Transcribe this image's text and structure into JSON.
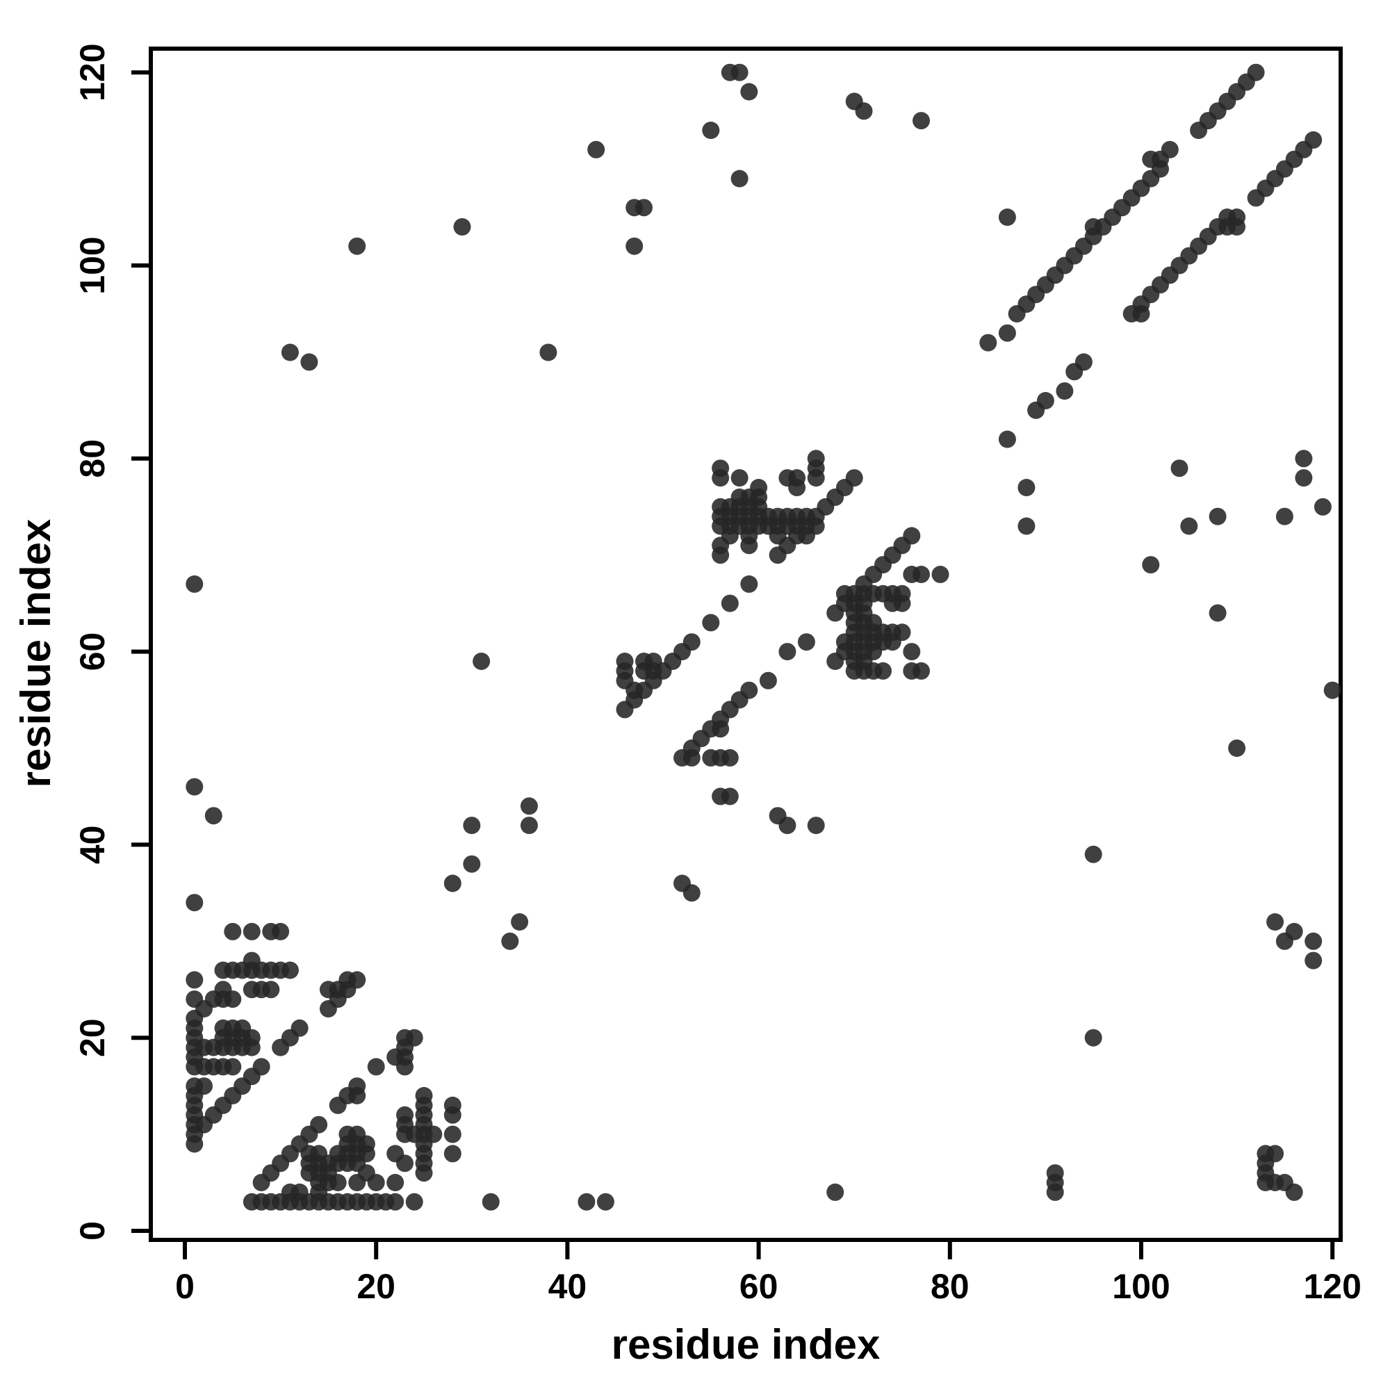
{
  "figure": {
    "background": "#ffffff",
    "axis_color": "#000000",
    "dot_color": "#262626"
  },
  "chart_data": {
    "type": "scatter",
    "title": "",
    "xlabel": "residue index",
    "ylabel": "residue index",
    "xlim": [
      -3.5,
      121
    ],
    "ylim": [
      -1,
      122.5
    ],
    "xticks": [
      0,
      20,
      40,
      60,
      80,
      100,
      120
    ],
    "yticks": [
      0,
      20,
      40,
      60,
      80,
      100,
      120
    ],
    "grid": false,
    "legend": null,
    "marker": {
      "shape": "circle",
      "radius_px": 12.5,
      "opacity": 0.88
    },
    "points": [
      [
        1,
        9
      ],
      [
        1,
        10
      ],
      [
        1,
        11
      ],
      [
        1,
        12
      ],
      [
        1,
        13
      ],
      [
        1,
        14
      ],
      [
        1,
        15
      ],
      [
        1,
        17
      ],
      [
        1,
        18
      ],
      [
        1,
        19
      ],
      [
        1,
        20
      ],
      [
        1,
        21
      ],
      [
        1,
        22
      ],
      [
        1,
        24
      ],
      [
        1,
        26
      ],
      [
        1,
        34
      ],
      [
        2,
        11
      ],
      [
        2,
        15
      ],
      [
        2,
        17
      ],
      [
        2,
        19
      ],
      [
        2,
        23
      ],
      [
        3,
        12
      ],
      [
        4,
        13
      ],
      [
        5,
        14
      ],
      [
        6,
        15
      ],
      [
        7,
        16
      ],
      [
        8,
        17
      ],
      [
        3,
        17
      ],
      [
        4,
        17
      ],
      [
        5,
        17
      ],
      [
        3,
        19
      ],
      [
        4,
        19
      ],
      [
        5,
        19
      ],
      [
        6,
        19
      ],
      [
        7,
        19
      ],
      [
        4,
        20
      ],
      [
        5,
        20
      ],
      [
        6,
        20
      ],
      [
        7,
        20
      ],
      [
        4,
        21
      ],
      [
        5,
        21
      ],
      [
        6,
        21
      ],
      [
        3,
        24
      ],
      [
        4,
        24
      ],
      [
        5,
        24
      ],
      [
        4,
        25
      ],
      [
        7,
        25
      ],
      [
        8,
        25
      ],
      [
        9,
        25
      ],
      [
        7,
        28
      ],
      [
        4,
        27
      ],
      [
        5,
        27
      ],
      [
        6,
        27
      ],
      [
        7,
        27
      ],
      [
        8,
        27
      ],
      [
        9,
        27
      ],
      [
        10,
        27
      ],
      [
        11,
        27
      ],
      [
        5,
        31
      ],
      [
        7,
        31
      ],
      [
        9,
        31
      ],
      [
        10,
        31
      ],
      [
        15,
        23
      ],
      [
        16,
        24
      ],
      [
        15,
        25
      ],
      [
        16,
        25
      ],
      [
        17,
        25
      ],
      [
        17,
        26
      ],
      [
        18,
        26
      ],
      [
        10,
        19
      ],
      [
        11,
        20
      ],
      [
        12,
        21
      ],
      [
        8,
        5
      ],
      [
        9,
        6
      ],
      [
        10,
        7
      ],
      [
        11,
        8
      ],
      [
        12,
        9
      ],
      [
        13,
        10
      ],
      [
        14,
        11
      ],
      [
        7,
        3
      ],
      [
        8,
        3
      ],
      [
        9,
        3
      ],
      [
        10,
        3
      ],
      [
        11,
        3
      ],
      [
        12,
        3
      ],
      [
        13,
        3
      ],
      [
        15,
        3
      ],
      [
        16,
        3
      ],
      [
        17,
        3
      ],
      [
        18,
        3
      ],
      [
        19,
        3
      ],
      [
        20,
        3
      ],
      [
        21,
        3
      ],
      [
        22,
        3
      ],
      [
        24,
        3
      ],
      [
        32,
        3
      ],
      [
        42,
        3
      ],
      [
        44,
        3
      ],
      [
        11,
        4
      ],
      [
        12,
        4
      ],
      [
        14,
        5
      ],
      [
        15,
        5
      ],
      [
        16,
        5
      ],
      [
        18,
        5
      ],
      [
        20,
        5
      ],
      [
        22,
        5
      ],
      [
        13,
        6
      ],
      [
        13,
        7
      ],
      [
        13,
        8
      ],
      [
        14,
        3
      ],
      [
        14,
        4
      ],
      [
        14,
        6
      ],
      [
        14,
        7
      ],
      [
        14,
        8
      ],
      [
        15,
        6
      ],
      [
        15,
        7
      ],
      [
        16,
        7
      ],
      [
        16,
        8
      ],
      [
        17,
        7
      ],
      [
        17,
        8
      ],
      [
        17,
        9
      ],
      [
        17,
        10
      ],
      [
        18,
        7
      ],
      [
        18,
        8
      ],
      [
        18,
        9
      ],
      [
        18,
        10
      ],
      [
        19,
        6
      ],
      [
        19,
        8
      ],
      [
        19,
        9
      ],
      [
        16,
        13
      ],
      [
        17,
        14
      ],
      [
        18,
        14
      ],
      [
        18,
        15
      ],
      [
        22,
        8
      ],
      [
        23,
        7
      ],
      [
        20,
        17
      ],
      [
        22,
        18
      ],
      [
        23,
        17
      ],
      [
        23,
        18
      ],
      [
        23,
        19
      ],
      [
        23,
        20
      ],
      [
        24,
        20
      ],
      [
        25,
        6
      ],
      [
        25,
        7
      ],
      [
        25,
        8
      ],
      [
        25,
        9
      ],
      [
        25,
        10
      ],
      [
        25,
        11
      ],
      [
        25,
        12
      ],
      [
        25,
        13
      ],
      [
        25,
        14
      ],
      [
        23,
        10
      ],
      [
        24,
        10
      ],
      [
        26,
        10
      ],
      [
        23,
        11
      ],
      [
        23,
        12
      ],
      [
        28,
        8
      ],
      [
        28,
        10
      ],
      [
        28,
        12
      ],
      [
        28,
        13
      ],
      [
        28,
        36
      ],
      [
        30,
        38
      ],
      [
        34,
        30
      ],
      [
        35,
        32
      ],
      [
        30,
        42
      ],
      [
        36,
        42
      ],
      [
        36,
        44
      ],
      [
        1,
        46
      ],
      [
        3,
        43
      ],
      [
        1,
        67
      ],
      [
        31,
        59
      ],
      [
        52,
        36
      ],
      [
        53,
        35
      ],
      [
        11,
        91
      ],
      [
        13,
        90
      ],
      [
        38,
        91
      ],
      [
        18,
        102
      ],
      [
        29,
        104
      ],
      [
        56,
        79
      ],
      [
        56,
        78
      ],
      [
        58,
        78
      ],
      [
        63,
        78
      ],
      [
        64,
        78
      ],
      [
        64,
        77
      ],
      [
        60,
        77
      ],
      [
        60,
        76
      ],
      [
        58,
        76
      ],
      [
        59,
        76
      ],
      [
        60,
        75
      ],
      [
        66,
        78
      ],
      [
        66,
        79
      ],
      [
        66,
        80
      ],
      [
        56,
        75
      ],
      [
        57,
        75
      ],
      [
        58,
        75
      ],
      [
        59,
        75
      ],
      [
        56,
        74
      ],
      [
        57,
        74
      ],
      [
        58,
        74
      ],
      [
        59,
        74
      ],
      [
        60,
        74
      ],
      [
        61,
        74
      ],
      [
        62,
        74
      ],
      [
        63,
        74
      ],
      [
        64,
        74
      ],
      [
        65,
        74
      ],
      [
        56,
        73
      ],
      [
        57,
        73
      ],
      [
        58,
        73
      ],
      [
        59,
        73
      ],
      [
        60,
        73
      ],
      [
        61,
        73
      ],
      [
        62,
        73
      ],
      [
        63,
        73
      ],
      [
        64,
        73
      ],
      [
        65,
        73
      ],
      [
        66,
        73
      ],
      [
        57,
        72
      ],
      [
        59,
        72
      ],
      [
        62,
        72
      ],
      [
        64,
        72
      ],
      [
        65,
        72
      ],
      [
        56,
        71
      ],
      [
        56,
        70
      ],
      [
        59,
        71
      ],
      [
        62,
        70
      ],
      [
        63,
        71
      ],
      [
        66,
        74
      ],
      [
        67,
        75
      ],
      [
        68,
        76
      ],
      [
        69,
        77
      ],
      [
        70,
        78
      ],
      [
        59,
        67
      ],
      [
        57,
        65
      ],
      [
        55,
        63
      ],
      [
        53,
        61
      ],
      [
        52,
        60
      ],
      [
        65,
        61
      ],
      [
        76,
        72
      ],
      [
        75,
        71
      ],
      [
        74,
        70
      ],
      [
        73,
        69
      ],
      [
        72,
        68
      ],
      [
        71,
        67
      ],
      [
        76,
        68
      ],
      [
        77,
        68
      ],
      [
        79,
        68
      ],
      [
        68,
        64
      ],
      [
        69,
        65
      ],
      [
        69,
        66
      ],
      [
        70,
        66
      ],
      [
        71,
        66
      ],
      [
        72,
        66
      ],
      [
        73,
        66
      ],
      [
        74,
        66
      ],
      [
        75,
        66
      ],
      [
        74,
        65
      ],
      [
        75,
        65
      ],
      [
        70,
        58
      ],
      [
        70,
        59
      ],
      [
        70,
        60
      ],
      [
        70,
        61
      ],
      [
        70,
        62
      ],
      [
        70,
        63
      ],
      [
        70,
        64
      ],
      [
        70,
        65
      ],
      [
        71,
        58
      ],
      [
        71,
        59
      ],
      [
        71,
        60
      ],
      [
        71,
        61
      ],
      [
        71,
        62
      ],
      [
        71,
        63
      ],
      [
        71,
        64
      ],
      [
        71,
        65
      ],
      [
        72,
        58
      ],
      [
        72,
        60
      ],
      [
        72,
        61
      ],
      [
        72,
        62
      ],
      [
        72,
        63
      ],
      [
        73,
        58
      ],
      [
        73,
        61
      ],
      [
        74,
        61
      ],
      [
        69,
        61
      ],
      [
        68,
        59
      ],
      [
        69,
        60
      ],
      [
        73,
        62
      ],
      [
        74,
        62
      ],
      [
        75,
        62
      ],
      [
        76,
        60
      ],
      [
        76,
        58
      ],
      [
        77,
        58
      ],
      [
        46,
        54
      ],
      [
        47,
        55
      ],
      [
        48,
        56
      ],
      [
        49,
        57
      ],
      [
        50,
        58
      ],
      [
        51,
        59
      ],
      [
        46,
        57
      ],
      [
        46,
        58
      ],
      [
        46,
        59
      ],
      [
        47,
        56
      ],
      [
        48,
        58
      ],
      [
        49,
        58
      ],
      [
        48,
        59
      ],
      [
        49,
        59
      ],
      [
        52,
        49
      ],
      [
        53,
        50
      ],
      [
        54,
        51
      ],
      [
        55,
        52
      ],
      [
        56,
        53
      ],
      [
        57,
        54
      ],
      [
        58,
        55
      ],
      [
        59,
        56
      ],
      [
        56,
        52
      ],
      [
        53,
        49
      ],
      [
        55,
        49
      ],
      [
        56,
        49
      ],
      [
        57,
        49
      ],
      [
        61,
        57
      ],
      [
        63,
        60
      ],
      [
        56,
        45
      ],
      [
        57,
        45
      ],
      [
        62,
        43
      ],
      [
        63,
        42
      ],
      [
        66,
        42
      ],
      [
        84,
        92
      ],
      [
        86,
        93
      ],
      [
        87,
        95
      ],
      [
        88,
        96
      ],
      [
        89,
        97
      ],
      [
        90,
        98
      ],
      [
        91,
        99
      ],
      [
        92,
        100
      ],
      [
        93,
        101
      ],
      [
        94,
        102
      ],
      [
        95,
        103
      ],
      [
        95,
        104
      ],
      [
        96,
        104
      ],
      [
        97,
        105
      ],
      [
        98,
        106
      ],
      [
        99,
        107
      ],
      [
        100,
        108
      ],
      [
        101,
        109
      ],
      [
        101,
        111
      ],
      [
        102,
        111
      ],
      [
        102,
        110
      ],
      [
        103,
        112
      ],
      [
        106,
        114
      ],
      [
        107,
        115
      ],
      [
        108,
        116
      ],
      [
        109,
        117
      ],
      [
        110,
        118
      ],
      [
        111,
        119
      ],
      [
        112,
        120
      ],
      [
        89,
        85
      ],
      [
        90,
        86
      ],
      [
        92,
        87
      ],
      [
        93,
        89
      ],
      [
        94,
        90
      ],
      [
        99,
        95
      ],
      [
        100,
        95
      ],
      [
        100,
        96
      ],
      [
        101,
        97
      ],
      [
        102,
        98
      ],
      [
        103,
        99
      ],
      [
        104,
        100
      ],
      [
        105,
        101
      ],
      [
        106,
        102
      ],
      [
        107,
        103
      ],
      [
        108,
        104
      ],
      [
        109,
        104
      ],
      [
        109,
        105
      ],
      [
        110,
        104
      ],
      [
        110,
        105
      ],
      [
        112,
        107
      ],
      [
        113,
        108
      ],
      [
        114,
        109
      ],
      [
        115,
        110
      ],
      [
        116,
        111
      ],
      [
        117,
        112
      ],
      [
        118,
        113
      ],
      [
        86,
        105
      ],
      [
        86,
        82
      ],
      [
        88,
        77
      ],
      [
        88,
        73
      ],
      [
        104,
        79
      ],
      [
        105,
        73
      ],
      [
        108,
        74
      ],
      [
        108,
        64
      ],
      [
        101,
        69
      ],
      [
        110,
        50
      ],
      [
        95,
        39
      ],
      [
        95,
        20
      ],
      [
        120,
        56
      ],
      [
        117,
        80
      ],
      [
        117,
        78
      ],
      [
        115,
        74
      ],
      [
        119,
        75
      ],
      [
        114,
        32
      ],
      [
        116,
        31
      ],
      [
        115,
        30
      ],
      [
        118,
        30
      ],
      [
        118,
        28
      ],
      [
        113,
        8
      ],
      [
        114,
        8
      ],
      [
        113,
        7
      ],
      [
        113,
        6
      ],
      [
        113,
        5
      ],
      [
        114,
        5
      ],
      [
        115,
        5
      ],
      [
        116,
        4
      ],
      [
        91,
        6
      ],
      [
        91,
        5
      ],
      [
        91,
        4
      ],
      [
        68,
        4
      ],
      [
        43,
        112
      ],
      [
        47,
        106
      ],
      [
        48,
        106
      ],
      [
        47,
        102
      ],
      [
        55,
        114
      ],
      [
        58,
        109
      ],
      [
        57,
        120
      ],
      [
        58,
        120
      ],
      [
        59,
        118
      ],
      [
        70,
        117
      ],
      [
        71,
        116
      ],
      [
        77,
        115
      ]
    ]
  }
}
